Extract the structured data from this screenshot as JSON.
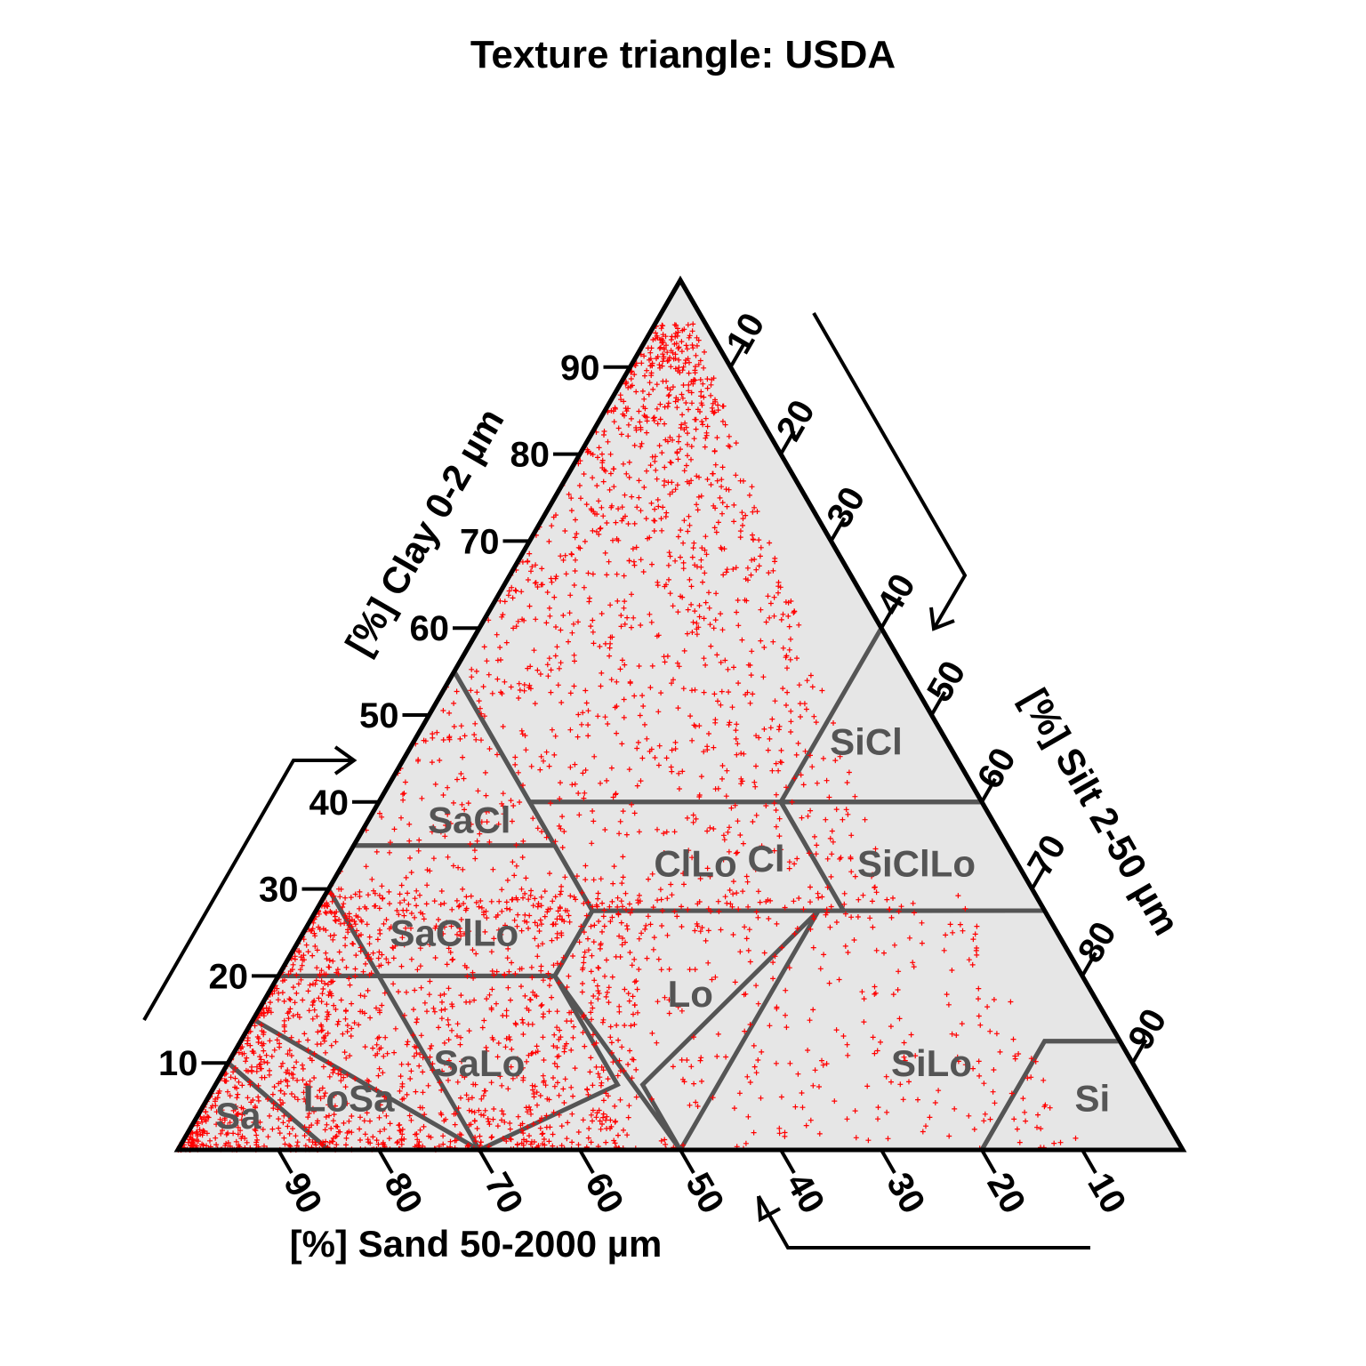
{
  "chart_data": {
    "type": "ternary",
    "title": "Texture triangle: USDA",
    "axes": {
      "clay": {
        "label": "[%] Clay 0-2 µm",
        "ticks": [
          10,
          20,
          30,
          40,
          50,
          60,
          70,
          80,
          90
        ]
      },
      "silt": {
        "label": "[%] Silt 2-50 µm",
        "ticks": [
          10,
          20,
          30,
          40,
          50,
          60,
          70,
          80,
          90
        ]
      },
      "sand": {
        "label": "[%] Sand 50-2000 µm",
        "ticks": [
          90,
          80,
          70,
          60,
          50,
          40,
          30,
          20,
          10
        ]
      }
    },
    "classes": [
      {
        "label": "Cl",
        "vertices": [
          [
            45,
            15,
            40
          ],
          [
            20,
            40,
            40
          ],
          [
            0,
            60,
            40
          ],
          [
            0,
            40,
            60
          ],
          [
            0,
            0,
            100
          ],
          [
            45,
            0,
            55
          ]
        ]
      },
      {
        "label": "SiCl",
        "vertices": [
          [
            20,
            40,
            40
          ],
          [
            0,
            60,
            40
          ],
          [
            0,
            40,
            60
          ]
        ]
      },
      {
        "label": "SaCl",
        "vertices": [
          [
            65,
            0,
            35
          ],
          [
            45,
            20,
            35
          ],
          [
            45,
            0,
            55
          ]
        ]
      },
      {
        "label": "ClLo",
        "vertices": [
          [
            45,
            27.5,
            27.5
          ],
          [
            20,
            52.5,
            27.5
          ],
          [
            20,
            40,
            40
          ],
          [
            45,
            15,
            40
          ]
        ]
      },
      {
        "label": "SiClLo",
        "vertices": [
          [
            20,
            52.5,
            27.5
          ],
          [
            0,
            72.5,
            27.5
          ],
          [
            0,
            60,
            40
          ],
          [
            20,
            40,
            40
          ]
        ]
      },
      {
        "label": "SaClLo",
        "vertices": [
          [
            80,
            0,
            20
          ],
          [
            52.5,
            27.5,
            20
          ],
          [
            45,
            27.5,
            27.5
          ],
          [
            45,
            20,
            35
          ],
          [
            65,
            0,
            35
          ]
        ]
      },
      {
        "label": "Lo",
        "vertices": [
          [
            52.5,
            27.5,
            20
          ],
          [
            45,
            27.5,
            27.5
          ],
          [
            22.5,
            50,
            27.5
          ],
          [
            50,
            42.5,
            7.5
          ],
          [
            50,
            50,
            0
          ]
        ]
      },
      {
        "label": "SiLo",
        "vertices": [
          [
            50,
            50,
            0
          ],
          [
            22.5,
            50,
            27.5
          ],
          [
            0,
            72.5,
            27.5
          ],
          [
            0,
            87.5,
            12.5
          ],
          [
            7.5,
            80,
            12.5
          ],
          [
            20,
            80,
            0
          ]
        ]
      },
      {
        "label": "Si",
        "vertices": [
          [
            20,
            80,
            0
          ],
          [
            7.5,
            80,
            12.5
          ],
          [
            0,
            87.5,
            12.5
          ],
          [
            0,
            100,
            0
          ]
        ]
      },
      {
        "label": "SaLo",
        "vertices": [
          [
            70,
            0,
            30
          ],
          [
            85,
            0,
            15
          ],
          [
            80,
            0,
            20
          ],
          [
            52.5,
            27.5,
            20
          ],
          [
            52.5,
            40,
            7.5
          ],
          [
            70,
            30,
            0
          ]
        ]
      },
      {
        "label": "LoSa",
        "vertices": [
          [
            85,
            0,
            15
          ],
          [
            90,
            0,
            10
          ],
          [
            85,
            15,
            0
          ],
          [
            70,
            30,
            0
          ]
        ]
      },
      {
        "label": "Sa",
        "vertices": [
          [
            90,
            0,
            10
          ],
          [
            100,
            0,
            0
          ],
          [
            85,
            15,
            0
          ]
        ]
      }
    ],
    "series": [
      {
        "marker": "+",
        "color": "#ff0000",
        "count_visible": "dense",
        "description_of_distribution": "samples concentrated at high sand, also spread across clay region"
      }
    ],
    "colors": {
      "background": "#e6e6e6",
      "points": "#ff0000",
      "class_lines": "#555555",
      "axes": "#000000"
    }
  }
}
